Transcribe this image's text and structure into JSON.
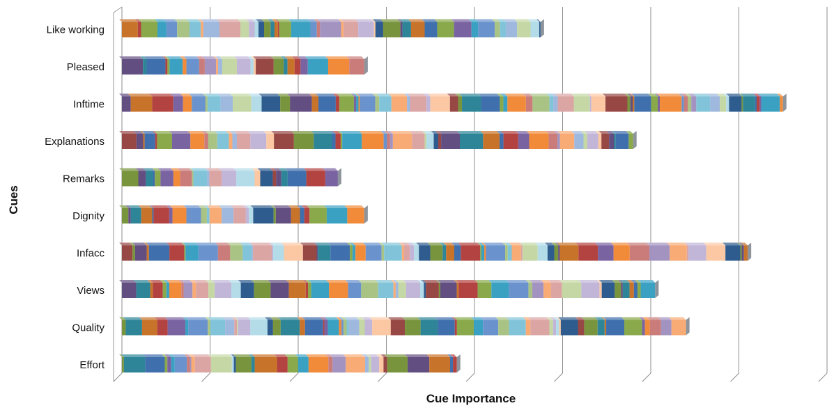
{
  "chart_data": {
    "type": "bar",
    "orientation": "horizontal",
    "stacked": true,
    "three_d": true,
    "xlabel": "Cue Importance",
    "ylabel": "Cues",
    "grid": true,
    "legend": "none",
    "categories": [
      "Like working",
      "Pleased",
      "Inftime",
      "Explanations",
      "Remarks",
      "Dignity",
      "Infacc",
      "Views",
      "Quality",
      "Effort"
    ],
    "totals": [
      4.75,
      2.75,
      7.5,
      5.8,
      2.45,
      2.75,
      7.1,
      6.05,
      6.4,
      3.8
    ],
    "gridline_count": 8,
    "palette": [
      "#2f5c8e",
      "#974744",
      "#78943d",
      "#624e80",
      "#2e8598",
      "#c8732a",
      "#3f6fac",
      "#b34340",
      "#89a94b",
      "#7a63a1",
      "#3ba1c3",
      "#f18b3a",
      "#6a93cd",
      "#c97c7a",
      "#a9c384",
      "#a393c0",
      "#81c4d9",
      "#f8ab75",
      "#9fb8de",
      "#dba5a4",
      "#c4d7a4",
      "#c1b5d8",
      "#b3dbe8",
      "#fbc8a3"
    ]
  }
}
